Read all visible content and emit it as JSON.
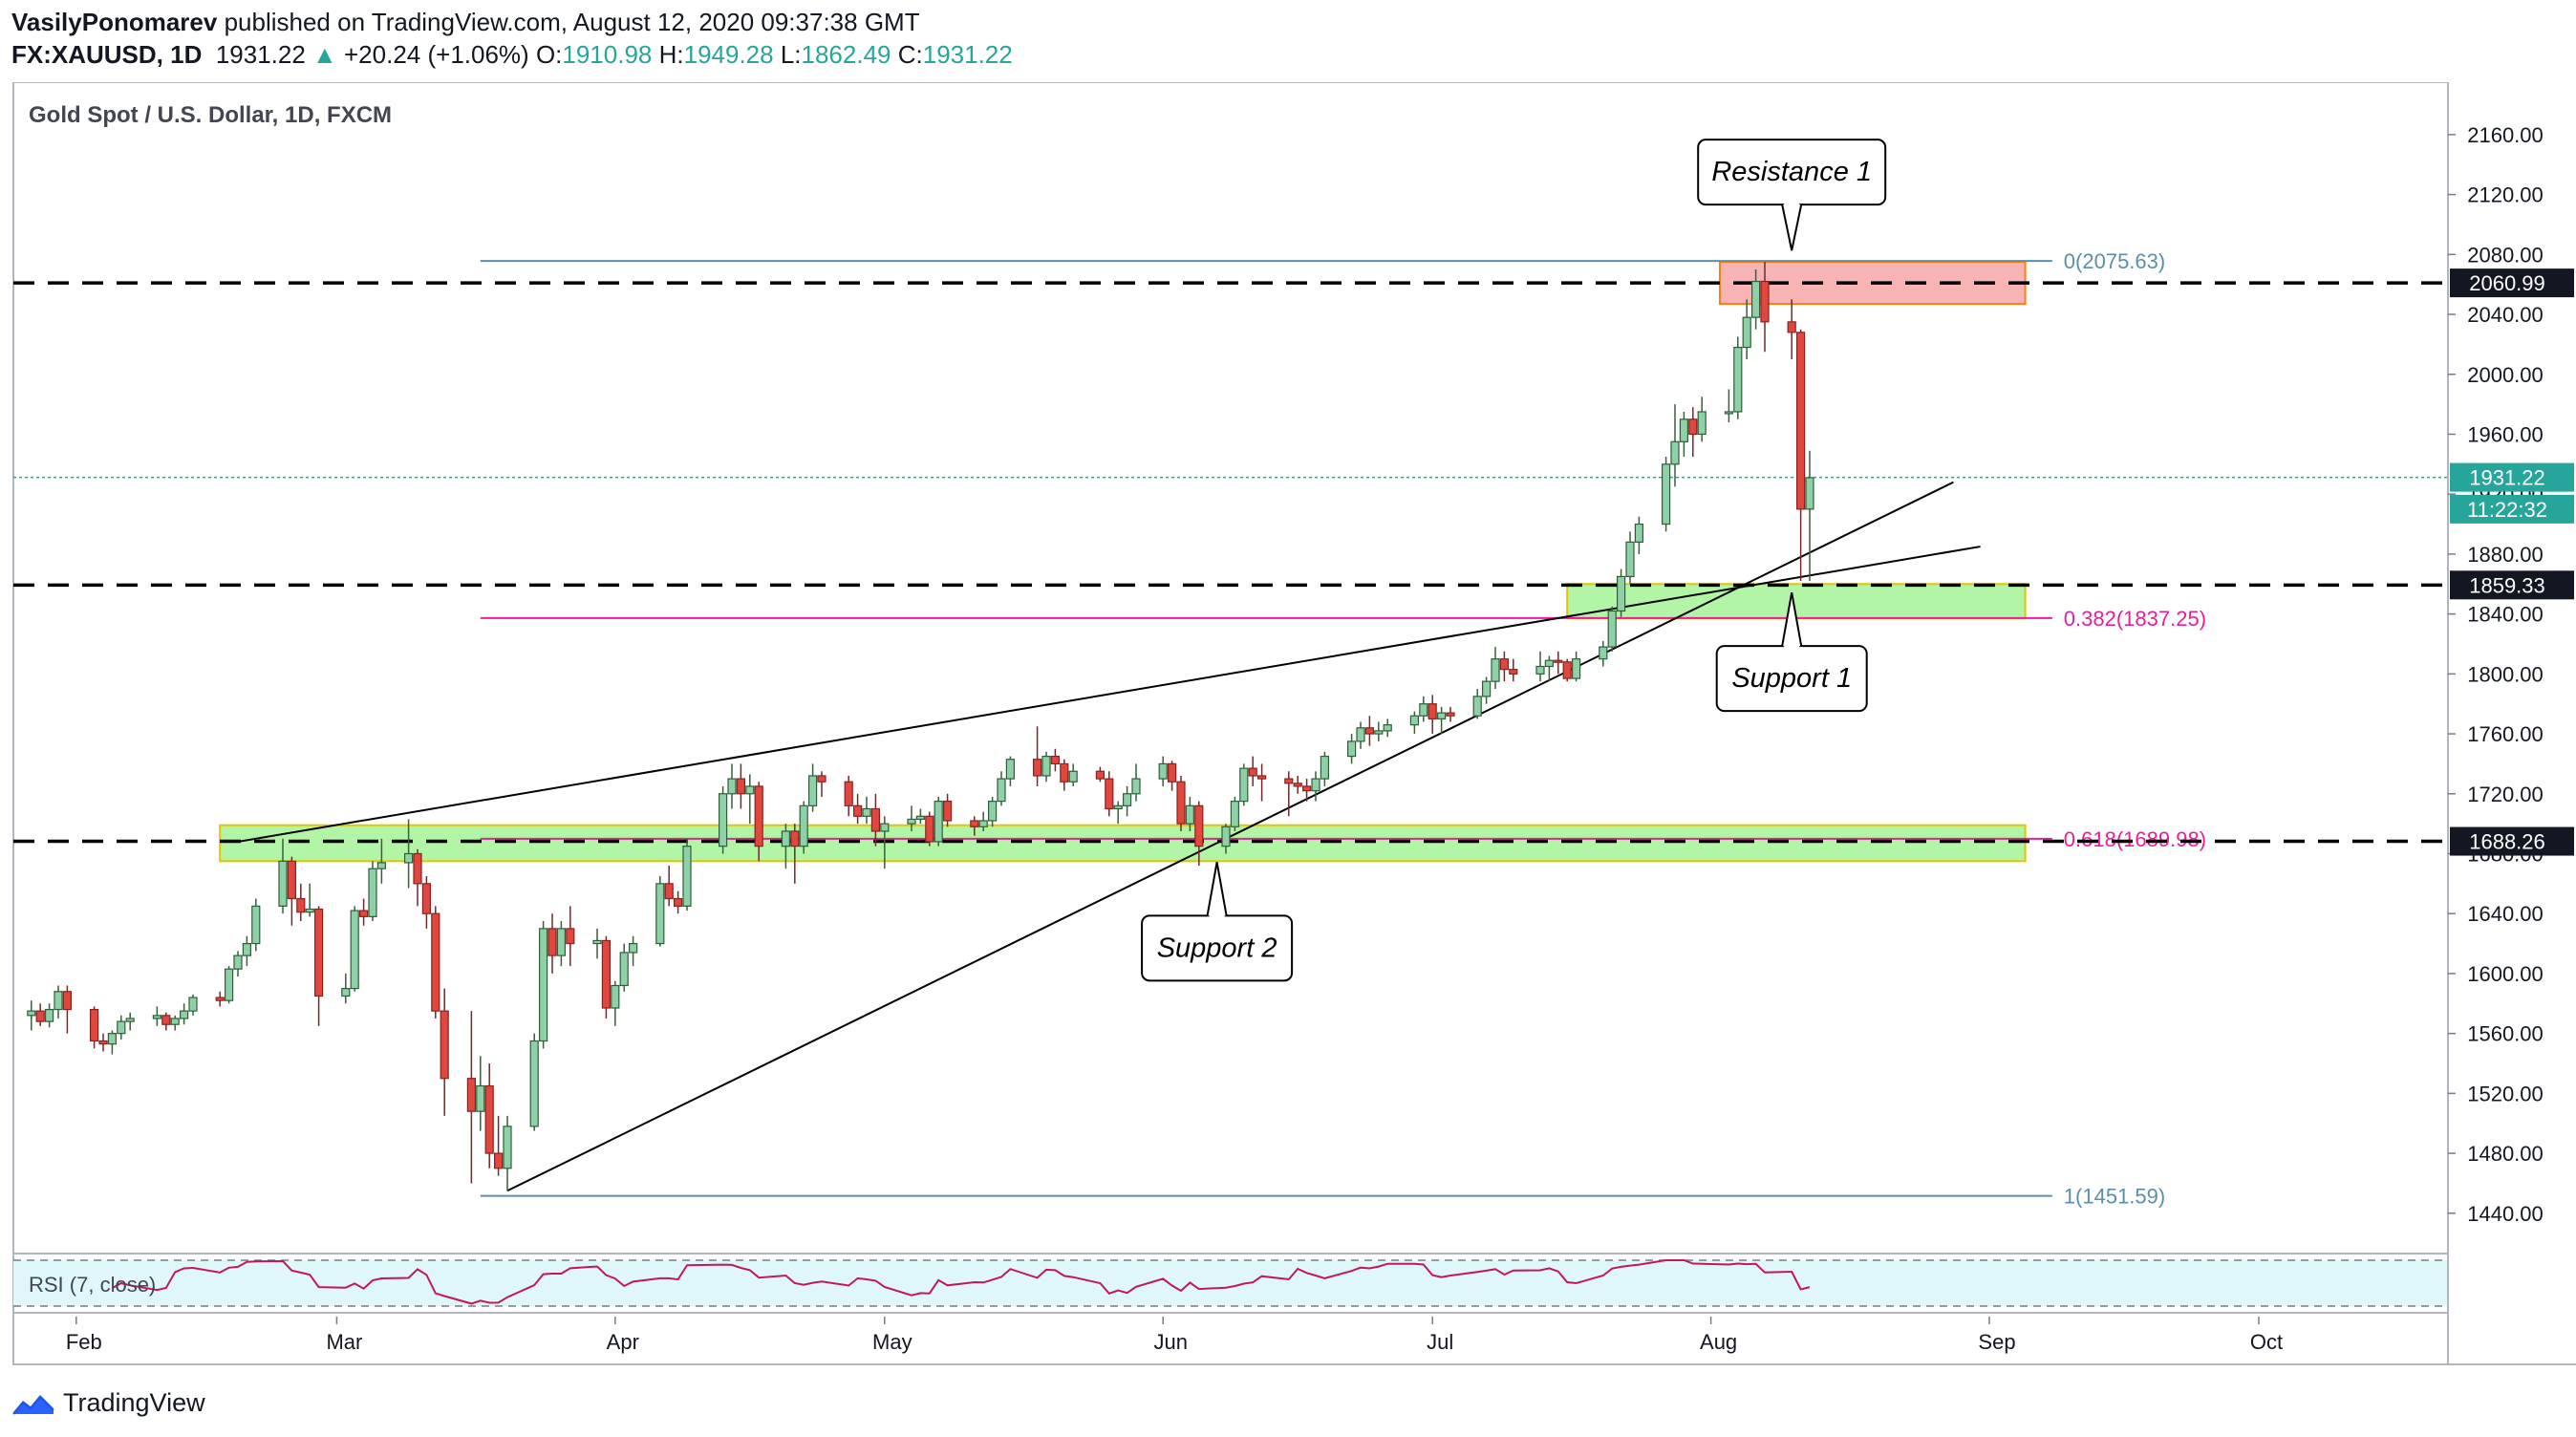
{
  "header": {
    "author": "VasilyPonomarev",
    "published": "published on TradingView.com, August 12, 2020 09:37:38 GMT",
    "symbol": "FX:XAUUSD, 1D",
    "last": "1931.22",
    "change": "+20.24 (+1.06%)",
    "o_label": "O:",
    "o_value": "1910.98",
    "h_label": "H:",
    "h_value": "1949.28",
    "l_label": "L:",
    "l_value": "1862.49",
    "c_label": "C:",
    "c_value": "1931.22"
  },
  "chart_title": "Gold Spot / U.S. Dollar, 1D, FXCM",
  "footer": {
    "logo_text": "TradingView"
  },
  "colors": {
    "up": "#26a69a",
    "up_body": "#8fd1a6",
    "down": "#ef5350",
    "down_body": "#e0483e",
    "green_zone": "#b2f5a7",
    "red_zone": "#f8b4b4",
    "fib_blue": "#5b8fa8",
    "fib_pink": "#e91e9c",
    "rsi": "#c2185b"
  },
  "chart_data": {
    "type": "candlestick",
    "x_axis_labels": [
      "Feb",
      "Mar",
      "Apr",
      "May",
      "Jun",
      "Jul",
      "Aug",
      "Sep",
      "Oct"
    ],
    "y_axis_ticks": [
      2160,
      2120,
      2080,
      2040,
      2000,
      1960,
      1920,
      1880,
      1840,
      1800,
      1760,
      1720,
      1680,
      1640,
      1600,
      1560,
      1520,
      1480,
      1440
    ],
    "ylim": [
      1415,
      2195
    ],
    "price_labels": [
      {
        "text": "2060.99",
        "value": 2060.99,
        "style": "dark"
      },
      {
        "text": "1931.22",
        "value": 1931.22,
        "style": "green"
      },
      {
        "text": "11:22:32",
        "value": 1910.0,
        "style": "green"
      },
      {
        "text": "1859.33",
        "value": 1859.33,
        "style": "dark"
      },
      {
        "text": "1688.26",
        "value": 1688.26,
        "style": "dark"
      }
    ],
    "fib_levels": [
      {
        "label": "0(2075.63)",
        "value": 2075.63
      },
      {
        "label": "0.382(1837.25)",
        "value": 1837.25
      },
      {
        "label": "0.618(1689.98)",
        "value": 1689.98
      },
      {
        "label": "1(1451.59)",
        "value": 1451.59
      }
    ],
    "dashed_levels": [
      2060.99,
      1859.33,
      1688.26
    ],
    "current_price": 1931.22,
    "zones": [
      {
        "name": "Resistance 1",
        "from": 2047,
        "to": 2075,
        "start": "2020-08-02",
        "end": "2020-09-05",
        "kind": "resistance"
      },
      {
        "name": "Support 1",
        "from": 1837,
        "to": 1860,
        "start": "2020-07-16",
        "end": "2020-09-05",
        "kind": "support"
      },
      {
        "name": "Support 2",
        "from": 1675,
        "to": 1699,
        "start": "2020-02-17",
        "end": "2020-09-05",
        "kind": "support"
      }
    ],
    "callouts": [
      {
        "text": "Resistance 1",
        "target_date": "2020-08-10",
        "target_price": 2075
      },
      {
        "text": "Support 1",
        "target_date": "2020-08-10",
        "target_price": 1862
      },
      {
        "text": "Support 2",
        "target_date": "2020-06-07",
        "target_price": 1682
      }
    ],
    "trendlines": [
      {
        "from": [
          "2020-02-19",
          1688
        ],
        "to": [
          "2020-08-31",
          1885
        ]
      },
      {
        "from": [
          "2020-03-20",
          1455
        ],
        "to": [
          "2020-08-28",
          1928
        ]
      }
    ],
    "rsi_label": "RSI (7, close)",
    "candles": [
      [
        "2020-01-27",
        1572,
        1582,
        1562,
        1575
      ],
      [
        "2020-01-28",
        1575,
        1580,
        1565,
        1568
      ],
      [
        "2020-01-29",
        1568,
        1580,
        1564,
        1576
      ],
      [
        "2020-01-30",
        1576,
        1592,
        1570,
        1588
      ],
      [
        "2020-01-31",
        1588,
        1592,
        1560,
        1576
      ],
      [
        "2020-02-03",
        1576,
        1578,
        1550,
        1555
      ],
      [
        "2020-02-04",
        1555,
        1560,
        1548,
        1553
      ],
      [
        "2020-02-05",
        1553,
        1562,
        1546,
        1560
      ],
      [
        "2020-02-06",
        1560,
        1572,
        1556,
        1568
      ],
      [
        "2020-02-07",
        1568,
        1574,
        1562,
        1570
      ],
      [
        "2020-02-10",
        1570,
        1578,
        1565,
        1572
      ],
      [
        "2020-02-11",
        1572,
        1574,
        1562,
        1566
      ],
      [
        "2020-02-12",
        1566,
        1572,
        1562,
        1570
      ],
      [
        "2020-02-13",
        1570,
        1580,
        1566,
        1575
      ],
      [
        "2020-02-14",
        1575,
        1586,
        1572,
        1584
      ],
      [
        "2020-02-17",
        1584,
        1588,
        1578,
        1582
      ],
      [
        "2020-02-18",
        1582,
        1605,
        1580,
        1603
      ],
      [
        "2020-02-19",
        1603,
        1615,
        1598,
        1612
      ],
      [
        "2020-02-20",
        1612,
        1625,
        1605,
        1620
      ],
      [
        "2020-02-21",
        1620,
        1650,
        1615,
        1645
      ],
      [
        "2020-02-24",
        1645,
        1690,
        1640,
        1675
      ],
      [
        "2020-02-25",
        1675,
        1678,
        1632,
        1650
      ],
      [
        "2020-02-26",
        1650,
        1660,
        1635,
        1641
      ],
      [
        "2020-02-27",
        1641,
        1660,
        1638,
        1643
      ],
      [
        "2020-02-28",
        1643,
        1645,
        1565,
        1585
      ],
      [
        "2020-03-02",
        1585,
        1600,
        1580,
        1590
      ],
      [
        "2020-03-03",
        1590,
        1645,
        1588,
        1642
      ],
      [
        "2020-03-04",
        1642,
        1650,
        1632,
        1638
      ],
      [
        "2020-03-05",
        1638,
        1675,
        1635,
        1670
      ],
      [
        "2020-03-06",
        1670,
        1690,
        1660,
        1674
      ],
      [
        "2020-03-09",
        1674,
        1703,
        1657,
        1680
      ],
      [
        "2020-03-10",
        1680,
        1683,
        1645,
        1660
      ],
      [
        "2020-03-11",
        1660,
        1665,
        1630,
        1640
      ],
      [
        "2020-03-12",
        1640,
        1645,
        1570,
        1575
      ],
      [
        "2020-03-13",
        1575,
        1590,
        1505,
        1530
      ],
      [
        "2020-03-16",
        1530,
        1575,
        1460,
        1508
      ],
      [
        "2020-03-17",
        1508,
        1545,
        1495,
        1525
      ],
      [
        "2020-03-18",
        1525,
        1540,
        1470,
        1480
      ],
      [
        "2020-03-19",
        1480,
        1505,
        1465,
        1470
      ],
      [
        "2020-03-20",
        1470,
        1505,
        1455,
        1498
      ],
      [
        "2020-03-23",
        1498,
        1560,
        1495,
        1555
      ],
      [
        "2020-03-24",
        1555,
        1635,
        1550,
        1630
      ],
      [
        "2020-03-25",
        1630,
        1640,
        1600,
        1612
      ],
      [
        "2020-03-26",
        1612,
        1635,
        1605,
        1630
      ],
      [
        "2020-03-27",
        1630,
        1645,
        1605,
        1620
      ],
      [
        "2020-03-30",
        1620,
        1630,
        1610,
        1622
      ],
      [
        "2020-03-31",
        1622,
        1625,
        1570,
        1577
      ],
      [
        "2020-04-01",
        1577,
        1595,
        1565,
        1592
      ],
      [
        "2020-04-02",
        1592,
        1620,
        1588,
        1614
      ],
      [
        "2020-04-03",
        1614,
        1625,
        1605,
        1620
      ],
      [
        "2020-04-06",
        1620,
        1665,
        1618,
        1660
      ],
      [
        "2020-04-07",
        1660,
        1672,
        1645,
        1650
      ],
      [
        "2020-04-08",
        1650,
        1655,
        1640,
        1645
      ],
      [
        "2020-04-09",
        1645,
        1690,
        1642,
        1685
      ],
      [
        "2020-04-13",
        1685,
        1725,
        1680,
        1720
      ],
      [
        "2020-04-14",
        1720,
        1740,
        1710,
        1730
      ],
      [
        "2020-04-15",
        1730,
        1740,
        1710,
        1720
      ],
      [
        "2020-04-16",
        1720,
        1733,
        1700,
        1725
      ],
      [
        "2020-04-17",
        1725,
        1728,
        1675,
        1685
      ],
      [
        "2020-04-20",
        1685,
        1700,
        1670,
        1695
      ],
      [
        "2020-04-21",
        1695,
        1700,
        1660,
        1685
      ],
      [
        "2020-04-22",
        1685,
        1715,
        1680,
        1712
      ],
      [
        "2020-04-23",
        1712,
        1740,
        1708,
        1732
      ],
      [
        "2020-04-24",
        1732,
        1735,
        1718,
        1728
      ],
      [
        "2020-04-27",
        1728,
        1732,
        1705,
        1712
      ],
      [
        "2020-04-28",
        1712,
        1720,
        1700,
        1705
      ],
      [
        "2020-04-29",
        1705,
        1718,
        1700,
        1710
      ],
      [
        "2020-04-30",
        1710,
        1720,
        1685,
        1695
      ],
      [
        "2020-05-01",
        1695,
        1705,
        1670,
        1700
      ],
      [
        "2020-05-04",
        1700,
        1712,
        1695,
        1703
      ],
      [
        "2020-05-05",
        1703,
        1710,
        1700,
        1705
      ],
      [
        "2020-05-06",
        1705,
        1708,
        1685,
        1688
      ],
      [
        "2020-05-07",
        1688,
        1718,
        1685,
        1715
      ],
      [
        "2020-05-08",
        1715,
        1720,
        1698,
        1702
      ],
      [
        "2020-05-11",
        1702,
        1705,
        1692,
        1698
      ],
      [
        "2020-05-12",
        1698,
        1708,
        1695,
        1702
      ],
      [
        "2020-05-13",
        1702,
        1718,
        1698,
        1715
      ],
      [
        "2020-05-14",
        1715,
        1735,
        1712,
        1730
      ],
      [
        "2020-05-15",
        1730,
        1745,
        1725,
        1743
      ],
      [
        "2020-05-18",
        1743,
        1765,
        1725,
        1732
      ],
      [
        "2020-05-19",
        1732,
        1748,
        1728,
        1745
      ],
      [
        "2020-05-20",
        1745,
        1750,
        1735,
        1740
      ],
      [
        "2020-05-21",
        1740,
        1743,
        1722,
        1728
      ],
      [
        "2020-05-22",
        1728,
        1740,
        1725,
        1735
      ],
      [
        "2020-05-25",
        1735,
        1738,
        1728,
        1730
      ],
      [
        "2020-05-26",
        1730,
        1735,
        1705,
        1710
      ],
      [
        "2020-05-27",
        1710,
        1715,
        1700,
        1712
      ],
      [
        "2020-05-28",
        1712,
        1725,
        1705,
        1720
      ],
      [
        "2020-05-29",
        1720,
        1740,
        1715,
        1730
      ],
      [
        "2020-06-01",
        1730,
        1745,
        1725,
        1740
      ],
      [
        "2020-06-02",
        1740,
        1742,
        1722,
        1728
      ],
      [
        "2020-06-03",
        1728,
        1732,
        1695,
        1700
      ],
      [
        "2020-06-04",
        1700,
        1718,
        1695,
        1712
      ],
      [
        "2020-06-05",
        1712,
        1715,
        1672,
        1685
      ],
      [
        "2020-06-08",
        1685,
        1700,
        1680,
        1698
      ],
      [
        "2020-06-09",
        1698,
        1718,
        1695,
        1715
      ],
      [
        "2020-06-10",
        1715,
        1740,
        1712,
        1737
      ],
      [
        "2020-06-11",
        1737,
        1745,
        1725,
        1732
      ],
      [
        "2020-06-12",
        1732,
        1740,
        1715,
        1730
      ],
      [
        "2020-06-15",
        1730,
        1735,
        1705,
        1727
      ],
      [
        "2020-06-16",
        1727,
        1732,
        1720,
        1725
      ],
      [
        "2020-06-17",
        1725,
        1730,
        1715,
        1722
      ],
      [
        "2020-06-18",
        1722,
        1735,
        1715,
        1730
      ],
      [
        "2020-06-19",
        1730,
        1748,
        1725,
        1745
      ],
      [
        "2020-06-22",
        1745,
        1760,
        1740,
        1755
      ],
      [
        "2020-06-23",
        1755,
        1768,
        1750,
        1764
      ],
      [
        "2020-06-24",
        1764,
        1772,
        1752,
        1760
      ],
      [
        "2020-06-25",
        1760,
        1768,
        1755,
        1762
      ],
      [
        "2020-06-26",
        1762,
        1770,
        1758,
        1766
      ],
      [
        "2020-06-29",
        1766,
        1775,
        1760,
        1772
      ],
      [
        "2020-06-30",
        1772,
        1785,
        1768,
        1780
      ],
      [
        "2020-07-01",
        1780,
        1786,
        1760,
        1770
      ],
      [
        "2020-07-02",
        1770,
        1778,
        1760,
        1774
      ],
      [
        "2020-07-03",
        1774,
        1778,
        1768,
        1772
      ],
      [
        "2020-07-06",
        1772,
        1790,
        1770,
        1785
      ],
      [
        "2020-07-07",
        1785,
        1798,
        1780,
        1795
      ],
      [
        "2020-07-08",
        1795,
        1818,
        1790,
        1810
      ],
      [
        "2020-07-09",
        1810,
        1815,
        1795,
        1803
      ],
      [
        "2020-07-10",
        1803,
        1810,
        1795,
        1800
      ],
      [
        "2020-07-13",
        1800,
        1815,
        1795,
        1805
      ],
      [
        "2020-07-14",
        1805,
        1812,
        1795,
        1809
      ],
      [
        "2020-07-15",
        1809,
        1815,
        1800,
        1808
      ],
      [
        "2020-07-16",
        1808,
        1810,
        1795,
        1797
      ],
      [
        "2020-07-17",
        1797,
        1815,
        1795,
        1810
      ],
      [
        "2020-07-20",
        1810,
        1822,
        1805,
        1818
      ],
      [
        "2020-07-21",
        1818,
        1845,
        1815,
        1842
      ],
      [
        "2020-07-22",
        1842,
        1870,
        1838,
        1865
      ],
      [
        "2020-07-23",
        1865,
        1895,
        1860,
        1888
      ],
      [
        "2020-07-24",
        1888,
        1905,
        1880,
        1900
      ],
      [
        "2020-07-27",
        1900,
        1945,
        1895,
        1940
      ],
      [
        "2020-07-28",
        1940,
        1980,
        1925,
        1955
      ],
      [
        "2020-07-29",
        1955,
        1975,
        1945,
        1970
      ],
      [
        "2020-07-30",
        1970,
        1978,
        1945,
        1960
      ],
      [
        "2020-07-31",
        1960,
        1985,
        1955,
        1975
      ],
      [
        "2020-08-03",
        1975,
        1990,
        1968,
        1975
      ],
      [
        "2020-08-04",
        1975,
        2025,
        1970,
        2018
      ],
      [
        "2020-08-05",
        2018,
        2050,
        2010,
        2038
      ],
      [
        "2020-08-06",
        2038,
        2070,
        2030,
        2062
      ],
      [
        "2020-08-07",
        2062,
        2075,
        2015,
        2035
      ],
      [
        "2020-08-10",
        2035,
        2050,
        2010,
        2028
      ],
      [
        "2020-08-11",
        2028,
        2030,
        1862,
        1910
      ],
      [
        "2020-08-12",
        1910,
        1949,
        1862,
        1931
      ]
    ]
  }
}
